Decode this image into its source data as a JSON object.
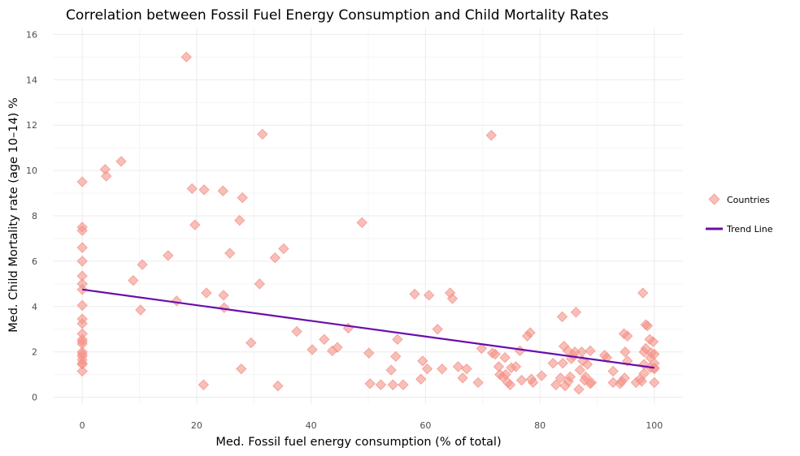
{
  "chart_data": {
    "type": "scatter",
    "title": "Correlation between Fossil Fuel Energy Consumption and Child Mortality Rates",
    "xlabel": "Med. Fossil fuel energy consumption (% of total)",
    "ylabel": "Med. Child Mortality rate (age 10–14) %",
    "xlim": [
      -5,
      105
    ],
    "ylim": [
      -0.3,
      16.3
    ],
    "x_ticks": [
      0,
      20,
      40,
      60,
      80,
      100
    ],
    "y_ticks": [
      0,
      2,
      4,
      6,
      8,
      10,
      12,
      14,
      16
    ],
    "grid": true,
    "legend_position": "right",
    "colors": {
      "points": "#f4948a",
      "trend": "#6a0dad",
      "grid": "#ebebeb"
    },
    "series": [
      {
        "name": "Countries",
        "marker": "diamond",
        "points": [
          [
            0,
            9.5
          ],
          [
            0,
            7.5
          ],
          [
            0,
            7.35
          ],
          [
            0,
            6.6
          ],
          [
            0,
            6.0
          ],
          [
            0,
            5.35
          ],
          [
            0,
            5.0
          ],
          [
            0,
            4.75
          ],
          [
            0,
            4.05
          ],
          [
            0,
            3.45
          ],
          [
            0,
            3.25
          ],
          [
            0,
            2.8
          ],
          [
            0,
            2.55
          ],
          [
            0,
            2.45
          ],
          [
            0,
            2.35
          ],
          [
            0,
            2.0
          ],
          [
            0,
            1.9
          ],
          [
            0,
            1.8
          ],
          [
            0,
            1.65
          ],
          [
            0,
            1.5
          ],
          [
            0,
            1.45
          ],
          [
            0,
            1.15
          ],
          [
            4,
            10.05
          ],
          [
            4.2,
            9.75
          ],
          [
            6.8,
            10.4
          ],
          [
            8.9,
            5.15
          ],
          [
            10.2,
            3.85
          ],
          [
            10.5,
            5.85
          ],
          [
            15,
            6.25
          ],
          [
            16.5,
            4.25
          ],
          [
            18.2,
            15.0
          ],
          [
            19.2,
            9.2
          ],
          [
            19.7,
            7.6
          ],
          [
            21.2,
            0.55
          ],
          [
            21.3,
            9.15
          ],
          [
            21.7,
            4.6
          ],
          [
            24.6,
            9.1
          ],
          [
            24.7,
            4.5
          ],
          [
            24.8,
            3.95
          ],
          [
            25.8,
            6.35
          ],
          [
            27.5,
            7.8
          ],
          [
            27.8,
            1.25
          ],
          [
            28,
            8.8
          ],
          [
            29.5,
            2.4
          ],
          [
            31,
            5.0
          ],
          [
            31.5,
            11.6
          ],
          [
            33.7,
            6.15
          ],
          [
            34.2,
            0.5
          ],
          [
            35.2,
            6.55
          ],
          [
            37.5,
            2.9
          ],
          [
            40.2,
            2.1
          ],
          [
            42.3,
            2.55
          ],
          [
            43.7,
            2.05
          ],
          [
            44.6,
            2.2
          ],
          [
            46.5,
            3.05
          ],
          [
            48.9,
            7.7
          ],
          [
            50.1,
            1.95
          ],
          [
            50.3,
            0.6
          ],
          [
            52.2,
            0.55
          ],
          [
            54,
            1.2
          ],
          [
            54.3,
            0.55
          ],
          [
            54.8,
            1.8
          ],
          [
            55.1,
            2.55
          ],
          [
            56.1,
            0.55
          ],
          [
            58.1,
            4.55
          ],
          [
            59.2,
            0.8
          ],
          [
            59.5,
            1.6
          ],
          [
            60.3,
            1.25
          ],
          [
            60.6,
            4.5
          ],
          [
            62.1,
            3.0
          ],
          [
            62.9,
            1.25
          ],
          [
            64.3,
            4.6
          ],
          [
            64.7,
            4.35
          ],
          [
            65.7,
            1.35
          ],
          [
            66.5,
            0.85
          ],
          [
            67.2,
            1.25
          ],
          [
            69.2,
            0.65
          ],
          [
            69.8,
            2.15
          ],
          [
            71.5,
            11.55
          ],
          [
            71.7,
            1.95
          ],
          [
            72.2,
            1.9
          ],
          [
            72.8,
            1.35
          ],
          [
            73,
            1.0
          ],
          [
            73.5,
            0.9
          ],
          [
            73.9,
            1.75
          ],
          [
            74,
            1.0
          ],
          [
            74.4,
            0.65
          ],
          [
            74.8,
            0.55
          ],
          [
            75,
            1.3
          ],
          [
            75.8,
            1.35
          ],
          [
            76.5,
            2.05
          ],
          [
            76.8,
            0.75
          ],
          [
            77.8,
            2.7
          ],
          [
            78.3,
            2.85
          ],
          [
            78.5,
            0.8
          ],
          [
            78.8,
            0.65
          ],
          [
            80.3,
            0.95
          ],
          [
            82.3,
            1.5
          ],
          [
            82.8,
            0.55
          ],
          [
            83.6,
            0.85
          ],
          [
            83.9,
            3.55
          ],
          [
            84,
            1.5
          ],
          [
            84.2,
            2.25
          ],
          [
            84.4,
            0.5
          ],
          [
            84.9,
            2.05
          ],
          [
            85,
            0.7
          ],
          [
            85.3,
            0.9
          ],
          [
            85.5,
            1.7
          ],
          [
            85.8,
            1.85
          ],
          [
            86.1,
            2.0
          ],
          [
            86.3,
            3.75
          ],
          [
            86.8,
            0.35
          ],
          [
            87,
            1.2
          ],
          [
            87.3,
            2.0
          ],
          [
            87.5,
            1.6
          ],
          [
            87.8,
            0.75
          ],
          [
            88,
            0.9
          ],
          [
            88.3,
            1.45
          ],
          [
            88.8,
            2.05
          ],
          [
            88.8,
            0.6
          ],
          [
            89,
            0.65
          ],
          [
            91.3,
            1.85
          ],
          [
            91.7,
            1.75
          ],
          [
            92.8,
            1.15
          ],
          [
            92.8,
            0.65
          ],
          [
            94,
            0.6
          ],
          [
            94.3,
            0.7
          ],
          [
            94.7,
            2.8
          ],
          [
            94.8,
            0.85
          ],
          [
            94.9,
            2.0
          ],
          [
            95.3,
            1.6
          ],
          [
            95.3,
            2.7
          ],
          [
            96.8,
            0.65
          ],
          [
            97.5,
            0.8
          ],
          [
            97.8,
            0.7
          ],
          [
            98,
            4.6
          ],
          [
            98.2,
            2.0
          ],
          [
            98.2,
            1.05
          ],
          [
            98.2,
            1.45
          ],
          [
            98.5,
            3.2
          ],
          [
            98.5,
            2.15
          ],
          [
            98.8,
            3.15
          ],
          [
            99.2,
            2.55
          ],
          [
            99.3,
            1.3
          ],
          [
            99.3,
            1.75
          ],
          [
            99.5,
            1.95
          ],
          [
            99.8,
            2.45
          ],
          [
            100,
            1.3
          ],
          [
            100,
            0.65
          ],
          [
            100,
            1.9
          ],
          [
            100,
            1.25
          ],
          [
            100,
            1.5
          ]
        ]
      },
      {
        "name": "Trend Line",
        "type": "line",
        "points": [
          [
            0,
            4.75
          ],
          [
            100,
            1.3
          ]
        ]
      }
    ]
  }
}
